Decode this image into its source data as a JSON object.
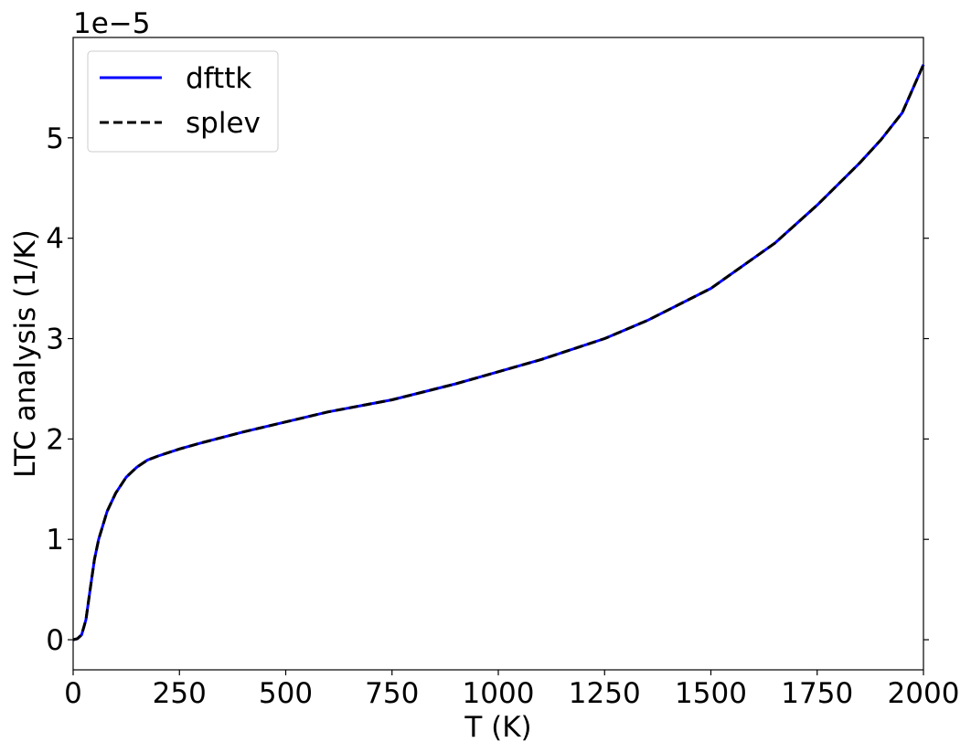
{
  "chart_data": {
    "type": "line",
    "xlabel": "T (K)",
    "ylabel": "LTC analysis (1/K)",
    "offset_text": "1e−5",
    "xlim": [
      0,
      2000
    ],
    "ylim": [
      -0.3,
      6.0
    ],
    "y_scale_note": "values in units of 1e-5",
    "xticks": [
      0,
      250,
      500,
      750,
      1000,
      1250,
      1500,
      1750,
      2000
    ],
    "yticks": [
      0,
      1,
      2,
      3,
      4,
      5
    ],
    "grid": false,
    "legend_position": "top-left",
    "series": [
      {
        "name": "dfttk",
        "style": "solid",
        "color": "#0000ff",
        "x": [
          0,
          10,
          20,
          30,
          40,
          50,
          60,
          80,
          100,
          125,
          150,
          175,
          200,
          250,
          300,
          400,
          500,
          600,
          750,
          900,
          1000,
          1100,
          1250,
          1350,
          1500,
          1650,
          1750,
          1850,
          1900,
          1950,
          2000
        ],
        "y": [
          0,
          0.01,
          0.05,
          0.2,
          0.5,
          0.8,
          1.0,
          1.28,
          1.46,
          1.62,
          1.72,
          1.79,
          1.83,
          1.9,
          1.96,
          2.07,
          2.17,
          2.27,
          2.39,
          2.55,
          2.67,
          2.79,
          3.0,
          3.18,
          3.5,
          3.95,
          4.33,
          4.75,
          4.98,
          5.25,
          5.73
        ]
      },
      {
        "name": "splev",
        "style": "dashed",
        "color": "#000000",
        "x": [
          0,
          10,
          20,
          30,
          40,
          50,
          60,
          80,
          100,
          125,
          150,
          175,
          200,
          250,
          300,
          400,
          500,
          600,
          750,
          900,
          1000,
          1100,
          1250,
          1350,
          1500,
          1650,
          1750,
          1850,
          1900,
          1950,
          2000
        ],
        "y": [
          0,
          0.01,
          0.05,
          0.2,
          0.5,
          0.8,
          1.0,
          1.28,
          1.46,
          1.62,
          1.72,
          1.79,
          1.83,
          1.9,
          1.96,
          2.07,
          2.17,
          2.27,
          2.39,
          2.55,
          2.67,
          2.79,
          3.0,
          3.18,
          3.5,
          3.95,
          4.33,
          4.75,
          4.98,
          5.25,
          5.73
        ]
      }
    ]
  }
}
